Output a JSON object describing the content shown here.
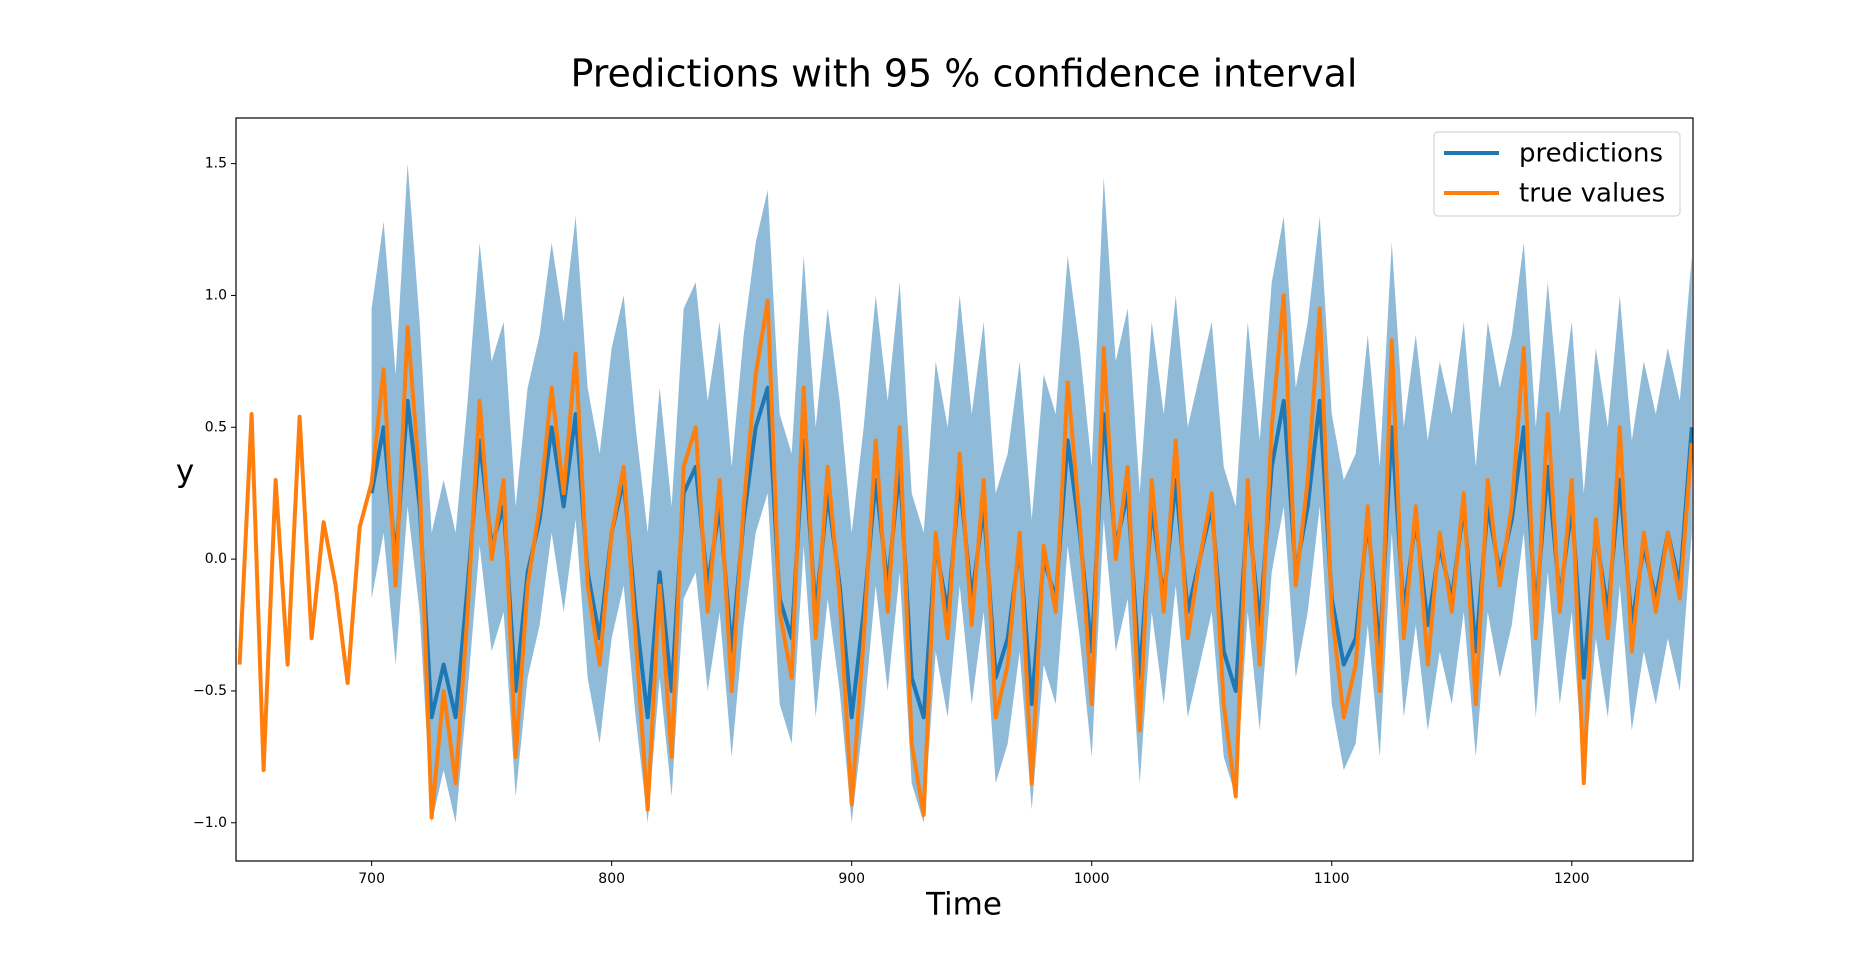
{
  "chart_data": {
    "type": "line",
    "title": "Predictions with 95 % confidence interval",
    "xlabel": "Time",
    "ylabel": "y",
    "x": [
      645,
      650,
      655,
      660,
      665,
      670,
      675,
      680,
      685,
      690,
      695,
      700,
      705,
      710,
      715,
      720,
      725,
      730,
      735,
      740,
      745,
      750,
      755,
      760,
      765,
      770,
      775,
      780,
      785,
      790,
      795,
      800,
      805,
      810,
      815,
      820,
      825,
      830,
      835,
      840,
      845,
      850,
      855,
      860,
      865,
      870,
      875,
      880,
      885,
      890,
      895,
      900,
      905,
      910,
      915,
      920,
      925,
      930,
      935,
      940,
      945,
      950,
      955,
      960,
      965,
      970,
      975,
      980,
      985,
      990,
      995,
      1000,
      1005,
      1010,
      1015,
      1020,
      1025,
      1030,
      1035,
      1040,
      1045,
      1050,
      1055,
      1060,
      1065,
      1070,
      1075,
      1080,
      1085,
      1090,
      1095,
      1100,
      1105,
      1110,
      1115,
      1120,
      1125,
      1130,
      1135,
      1140,
      1145,
      1150,
      1155,
      1160,
      1165,
      1170,
      1175,
      1180,
      1185,
      1190,
      1195,
      1200,
      1205,
      1210,
      1215,
      1220,
      1225,
      1230,
      1235,
      1240,
      1245,
      1250
    ],
    "band": {
      "color": "#1f77b4",
      "opacity": 0.5,
      "upper": [
        null,
        null,
        null,
        null,
        null,
        null,
        null,
        null,
        null,
        null,
        null,
        0.95,
        1.28,
        0.7,
        1.5,
        0.9,
        0.1,
        0.3,
        0.1,
        0.6,
        1.2,
        0.75,
        0.9,
        0.2,
        0.65,
        0.85,
        1.2,
        0.9,
        1.3,
        0.65,
        0.4,
        0.8,
        1.0,
        0.5,
        0.1,
        0.65,
        0.2,
        0.95,
        1.05,
        0.6,
        0.9,
        0.35,
        0.85,
        1.2,
        1.4,
        0.55,
        0.4,
        1.15,
        0.5,
        0.95,
        0.6,
        0.1,
        0.5,
        1.0,
        0.6,
        1.05,
        0.25,
        0.1,
        0.75,
        0.5,
        1.0,
        0.55,
        0.9,
        0.25,
        0.4,
        0.75,
        0.15,
        0.7,
        0.55,
        1.15,
        0.8,
        0.35,
        1.45,
        0.75,
        0.95,
        0.25,
        0.9,
        0.55,
        1.0,
        0.5,
        0.7,
        0.9,
        0.35,
        0.2,
        0.9,
        0.45,
        1.05,
        1.3,
        0.65,
        0.9,
        1.3,
        0.55,
        0.3,
        0.4,
        0.85,
        0.35,
        1.2,
        0.5,
        0.85,
        0.45,
        0.75,
        0.55,
        0.9,
        0.35,
        0.9,
        0.65,
        0.85,
        1.2,
        0.5,
        1.05,
        0.55,
        0.9,
        0.25,
        0.8,
        0.5,
        1.0,
        0.45,
        0.75,
        0.55,
        0.8,
        0.6,
        1.15
      ],
      "lower": [
        null,
        null,
        null,
        null,
        null,
        null,
        null,
        null,
        null,
        null,
        null,
        -0.15,
        0.1,
        -0.4,
        0.2,
        -0.2,
        -1.0,
        -0.8,
        -1.0,
        -0.5,
        0.05,
        -0.35,
        -0.2,
        -0.9,
        -0.45,
        -0.25,
        0.1,
        -0.2,
        0.15,
        -0.45,
        -0.7,
        -0.3,
        -0.1,
        -0.6,
        -1.0,
        -0.45,
        -0.9,
        -0.15,
        -0.05,
        -0.5,
        -0.2,
        -0.75,
        -0.25,
        0.1,
        0.25,
        -0.55,
        -0.7,
        0.05,
        -0.6,
        -0.15,
        -0.5,
        -1.0,
        -0.6,
        -0.1,
        -0.5,
        -0.05,
        -0.85,
        -1.0,
        -0.35,
        -0.6,
        -0.1,
        -0.55,
        -0.2,
        -0.85,
        -0.7,
        -0.35,
        -0.95,
        -0.4,
        -0.55,
        0.05,
        -0.3,
        -0.75,
        0.15,
        -0.35,
        -0.15,
        -0.85,
        -0.2,
        -0.55,
        -0.1,
        -0.6,
        -0.4,
        -0.2,
        -0.75,
        -0.9,
        -0.2,
        -0.65,
        -0.05,
        0.2,
        -0.45,
        -0.2,
        0.2,
        -0.55,
        -0.8,
        -0.7,
        -0.25,
        -0.75,
        0.1,
        -0.6,
        -0.25,
        -0.65,
        -0.35,
        -0.55,
        -0.2,
        -0.75,
        -0.2,
        -0.45,
        -0.25,
        0.1,
        -0.6,
        -0.05,
        -0.55,
        -0.2,
        -0.85,
        -0.3,
        -0.6,
        -0.1,
        -0.65,
        -0.35,
        -0.55,
        -0.3,
        -0.5,
        0.1
      ]
    },
    "series": [
      {
        "name": "predictions",
        "color": "#1f77b4",
        "values": [
          null,
          null,
          null,
          null,
          null,
          null,
          null,
          null,
          null,
          null,
          null,
          0.25,
          0.5,
          0.0,
          0.6,
          0.2,
          -0.6,
          -0.4,
          -0.6,
          -0.1,
          0.45,
          0.05,
          0.2,
          -0.5,
          -0.05,
          0.15,
          0.5,
          0.2,
          0.55,
          -0.05,
          -0.3,
          0.1,
          0.3,
          -0.2,
          -0.6,
          -0.05,
          -0.5,
          0.25,
          0.35,
          -0.1,
          0.2,
          -0.35,
          0.15,
          0.5,
          0.65,
          -0.15,
          -0.3,
          0.45,
          -0.2,
          0.25,
          -0.1,
          -0.6,
          -0.2,
          0.3,
          -0.1,
          0.35,
          -0.45,
          -0.6,
          0.05,
          -0.2,
          0.3,
          -0.15,
          0.2,
          -0.45,
          -0.3,
          0.05,
          -0.55,
          0.0,
          -0.15,
          0.45,
          0.1,
          -0.35,
          0.55,
          0.05,
          0.25,
          -0.45,
          0.2,
          -0.15,
          0.3,
          -0.2,
          0.0,
          0.2,
          -0.35,
          -0.5,
          0.2,
          -0.25,
          0.35,
          0.6,
          -0.05,
          0.2,
          0.6,
          -0.15,
          -0.4,
          -0.3,
          0.15,
          -0.35,
          0.5,
          -0.2,
          0.15,
          -0.25,
          0.05,
          -0.15,
          0.2,
          -0.35,
          0.2,
          -0.05,
          0.15,
          0.5,
          -0.2,
          0.35,
          -0.15,
          0.2,
          -0.45,
          0.1,
          -0.2,
          0.3,
          -0.25,
          0.05,
          -0.15,
          0.1,
          -0.1,
          0.5
        ]
      },
      {
        "name": "true values",
        "color": "#ff7f0e",
        "values": [
          -0.4,
          0.55,
          -0.8,
          0.3,
          -0.4,
          0.54,
          -0.3,
          0.14,
          -0.1,
          -0.47,
          0.12,
          0.29,
          0.72,
          -0.1,
          0.88,
          0.3,
          -0.98,
          -0.5,
          -0.85,
          -0.2,
          0.6,
          0.0,
          0.3,
          -0.75,
          -0.1,
          0.2,
          0.65,
          0.25,
          0.78,
          -0.1,
          -0.4,
          0.1,
          0.35,
          -0.3,
          -0.95,
          -0.1,
          -0.75,
          0.35,
          0.5,
          -0.2,
          0.3,
          -0.5,
          0.2,
          0.7,
          0.98,
          -0.2,
          -0.45,
          0.65,
          -0.3,
          0.35,
          -0.15,
          -0.93,
          -0.3,
          0.45,
          -0.2,
          0.5,
          -0.7,
          -0.97,
          0.1,
          -0.3,
          0.4,
          -0.25,
          0.3,
          -0.6,
          -0.4,
          0.1,
          -0.85,
          0.05,
          -0.2,
          0.67,
          0.15,
          -0.55,
          0.8,
          0.0,
          0.35,
          -0.65,
          0.3,
          -0.2,
          0.45,
          -0.3,
          0.0,
          0.25,
          -0.55,
          -0.9,
          0.3,
          -0.4,
          0.5,
          1.0,
          -0.1,
          0.3,
          0.95,
          -0.2,
          -0.6,
          -0.4,
          0.2,
          -0.5,
          0.83,
          -0.3,
          0.2,
          -0.4,
          0.1,
          -0.2,
          0.25,
          -0.55,
          0.3,
          -0.1,
          0.2,
          0.8,
          -0.3,
          0.55,
          -0.2,
          0.3,
          -0.85,
          0.15,
          -0.3,
          0.5,
          -0.35,
          0.1,
          -0.2,
          0.1,
          -0.15,
          0.44
        ]
      }
    ],
    "xlim": [
      643.5,
      1250.5
    ],
    "ylim": [
      -1.145,
      1.673
    ],
    "xticks": [
      700,
      800,
      900,
      1000,
      1100,
      1200
    ],
    "yticks": [
      {
        "value": -1,
        "label": "−1.0"
      },
      {
        "value": -0.5,
        "label": "−0.5"
      },
      {
        "value": 0,
        "label": "0.0"
      },
      {
        "value": 0.5,
        "label": "0.5"
      },
      {
        "value": 1,
        "label": "1.0"
      },
      {
        "value": 1.5,
        "label": "1.5"
      }
    ],
    "grid": false,
    "legend": "upper right"
  }
}
